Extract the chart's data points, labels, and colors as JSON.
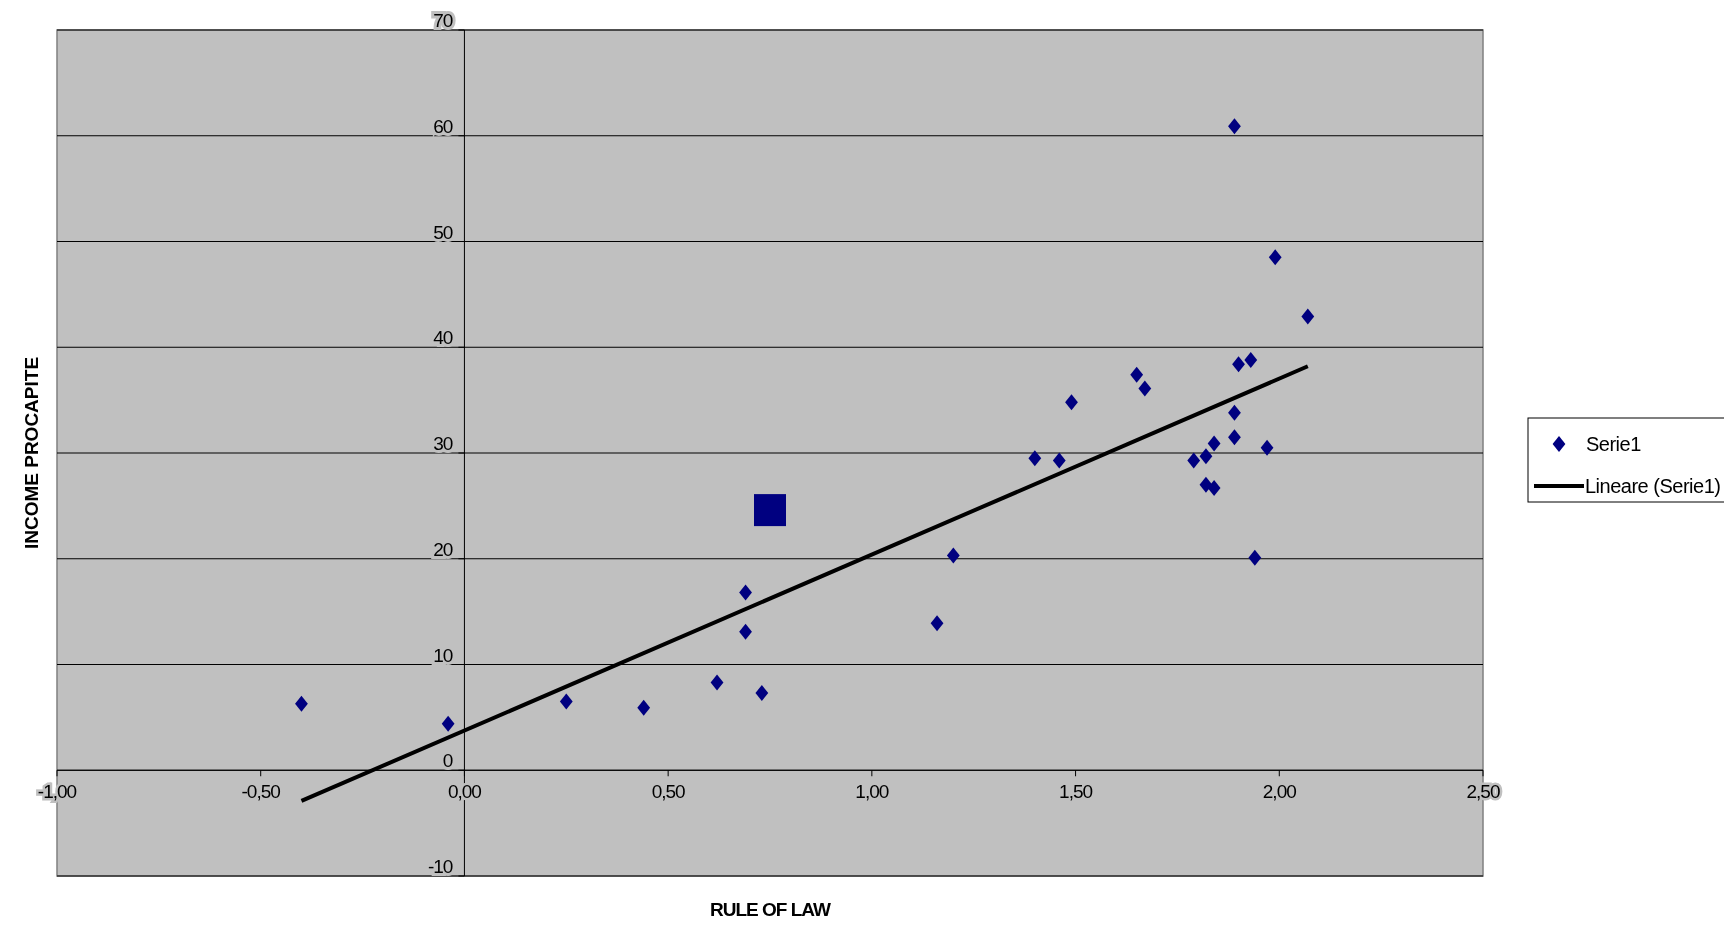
{
  "chart_data": {
    "type": "scatter",
    "xlabel": "RULE OF LAW",
    "ylabel": "INCOME PROCAPITE",
    "xlim": [
      -1,
      2.5
    ],
    "ylim": [
      -10,
      70
    ],
    "xticks": [
      {
        "value": -1,
        "label": "-1,00"
      },
      {
        "value": -0.5,
        "label": "-0,50"
      },
      {
        "value": 0,
        "label": "0,00"
      },
      {
        "value": 0.5,
        "label": "0,50"
      },
      {
        "value": 1,
        "label": "1,00"
      },
      {
        "value": 1.5,
        "label": "1,50"
      },
      {
        "value": 2,
        "label": "2,00"
      },
      {
        "value": 2.5,
        "label": "2,50"
      }
    ],
    "yticks": [
      -10,
      0,
      10,
      20,
      30,
      40,
      50,
      60,
      70
    ],
    "grid": "y",
    "legend": "right",
    "series": [
      {
        "name": "Serie1",
        "marker": "diamond",
        "color": "#000080",
        "x": [
          -0.4,
          -0.04,
          0.25,
          0.44,
          0.62,
          0.69,
          0.69,
          0.73,
          1.16,
          1.2,
          1.4,
          1.46,
          1.49,
          1.65,
          1.67,
          1.79,
          1.82,
          1.82,
          1.84,
          1.84,
          1.89,
          1.89,
          1.89,
          1.9,
          1.93,
          1.94,
          1.97,
          1.99,
          2.07
        ],
        "values": [
          6.3,
          4.4,
          6.5,
          5.9,
          8.3,
          16.8,
          13.1,
          7.3,
          13.9,
          20.3,
          29.5,
          29.3,
          34.8,
          37.4,
          36.1,
          29.3,
          29.7,
          27.0,
          26.7,
          30.9,
          33.8,
          31.5,
          60.9,
          38.4,
          38.8,
          20.1,
          30.5,
          48.5,
          42.9
        ]
      },
      {
        "marker": "square",
        "color": "#000080",
        "x": [
          0.75
        ],
        "values": [
          24.6
        ]
      },
      {
        "name": "Lineare (Serie1)",
        "type": "line",
        "marker": "none",
        "line_style": "solid",
        "color": "#000000",
        "x": [
          -0.4,
          2.07
        ],
        "values": [
          -2.9,
          38.2
        ]
      }
    ]
  }
}
